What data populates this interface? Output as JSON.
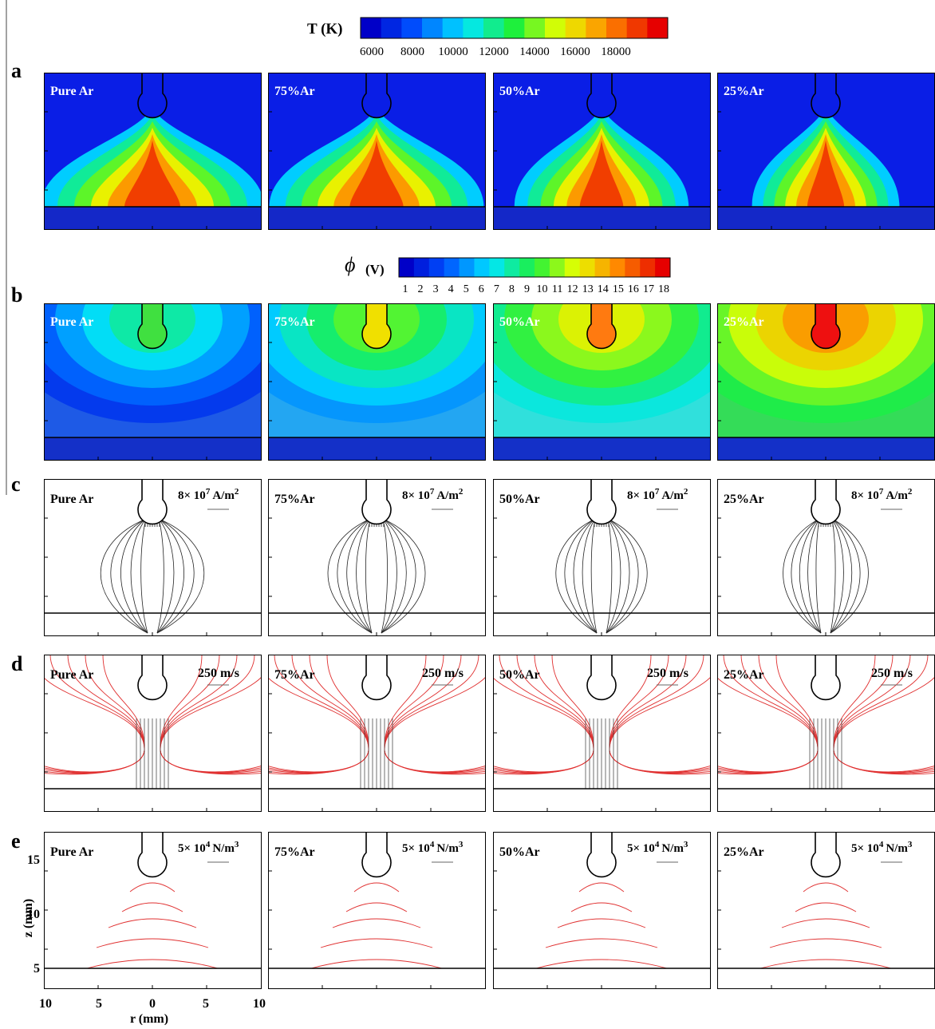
{
  "figure": {
    "colorbar_T": {
      "label": "T (K)",
      "ticks": [
        6000,
        8000,
        10000,
        12000,
        14000,
        16000,
        18000
      ]
    },
    "colorbar_phi": {
      "symbol": "ϕ",
      "unit": "(V)",
      "ticks": [
        1,
        2,
        3,
        4,
        5,
        6,
        7,
        8,
        9,
        10,
        11,
        12,
        13,
        14,
        15,
        16,
        17,
        18
      ]
    },
    "rows": [
      "a",
      "b",
      "c",
      "d",
      "e"
    ],
    "panel_labels": [
      "Pure Ar",
      "75%Ar",
      "50%Ar",
      "25%Ar"
    ],
    "scale_c": {
      "base": "8× 10",
      "exp": "7",
      "unit": "A/m",
      "unit_exp": "2"
    },
    "scale_d": {
      "text": "250 m/s"
    },
    "scale_e": {
      "base": "5× 10",
      "exp": "4",
      "unit": "N/m",
      "unit_exp": "3"
    },
    "axes": {
      "y_label": "z (mm)",
      "yticks": [
        15,
        10,
        5
      ],
      "x_label": "r (mm)",
      "xticks": [
        10,
        5,
        0,
        5,
        10
      ]
    }
  }
}
